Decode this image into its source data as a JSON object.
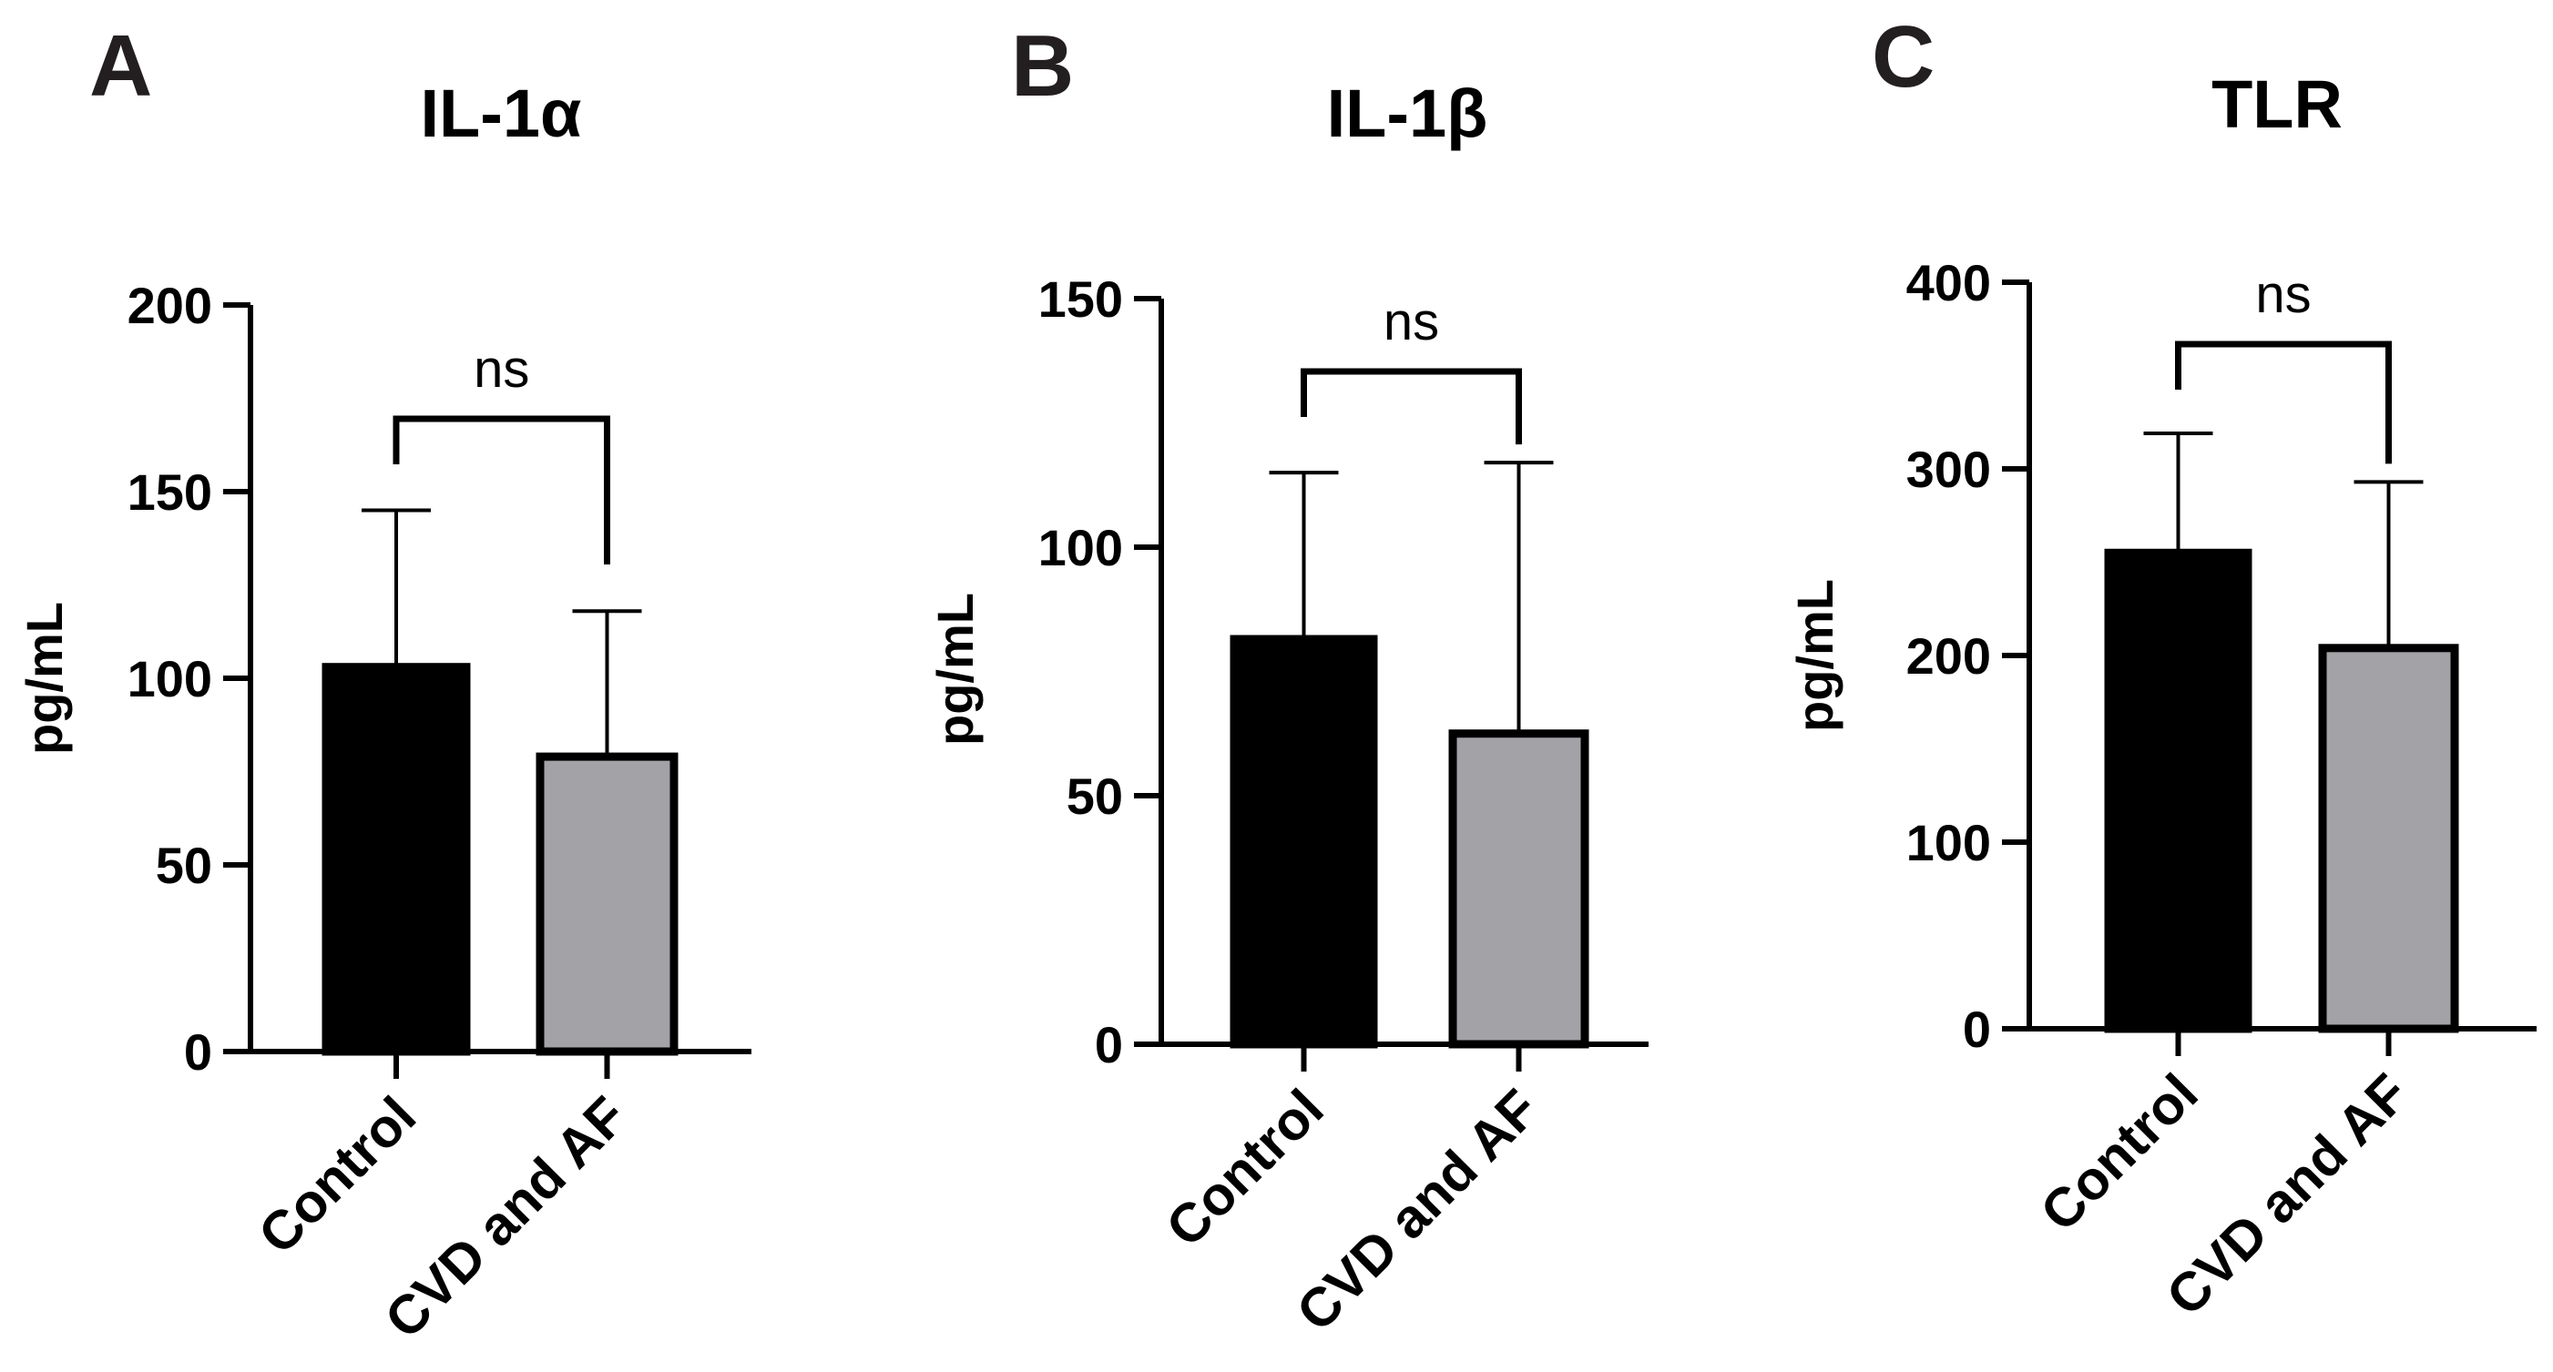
{
  "colors": {
    "control": "#000000",
    "cvd_af": "#a3a2a7",
    "axis": "#000000",
    "panel_letter": "#231f20"
  },
  "chart_data": [
    {
      "type": "bar",
      "panel": "A",
      "title": "IL-1α",
      "ylabel": "pg/mL",
      "xlabel": "",
      "ylim": [
        0,
        200
      ],
      "yticks": [
        "0",
        "50",
        "100",
        "150",
        "200"
      ],
      "categories": [
        "Control",
        "CVD and AF"
      ],
      "values": [
        103,
        79
      ],
      "error_upper": [
        145,
        118
      ],
      "significance": "ns"
    },
    {
      "type": "bar",
      "panel": "B",
      "title": "IL-1β",
      "ylabel": "pg/mL",
      "xlabel": "",
      "ylim": [
        0,
        150
      ],
      "yticks": [
        "0",
        "50",
        "100",
        "150"
      ],
      "categories": [
        "Control",
        "CVD and AF"
      ],
      "values": [
        81.5,
        62.5
      ],
      "error_upper": [
        115,
        117
      ],
      "significance": "ns"
    },
    {
      "type": "bar",
      "panel": "C",
      "title": "TLR",
      "ylabel": "pg/mL",
      "xlabel": "",
      "ylim": [
        0,
        400
      ],
      "yticks": [
        "0",
        "100",
        "200",
        "300",
        "400"
      ],
      "categories": [
        "Control",
        "CVD and AF"
      ],
      "values": [
        255,
        204
      ],
      "error_upper": [
        319,
        293
      ],
      "significance": "ns"
    }
  ]
}
